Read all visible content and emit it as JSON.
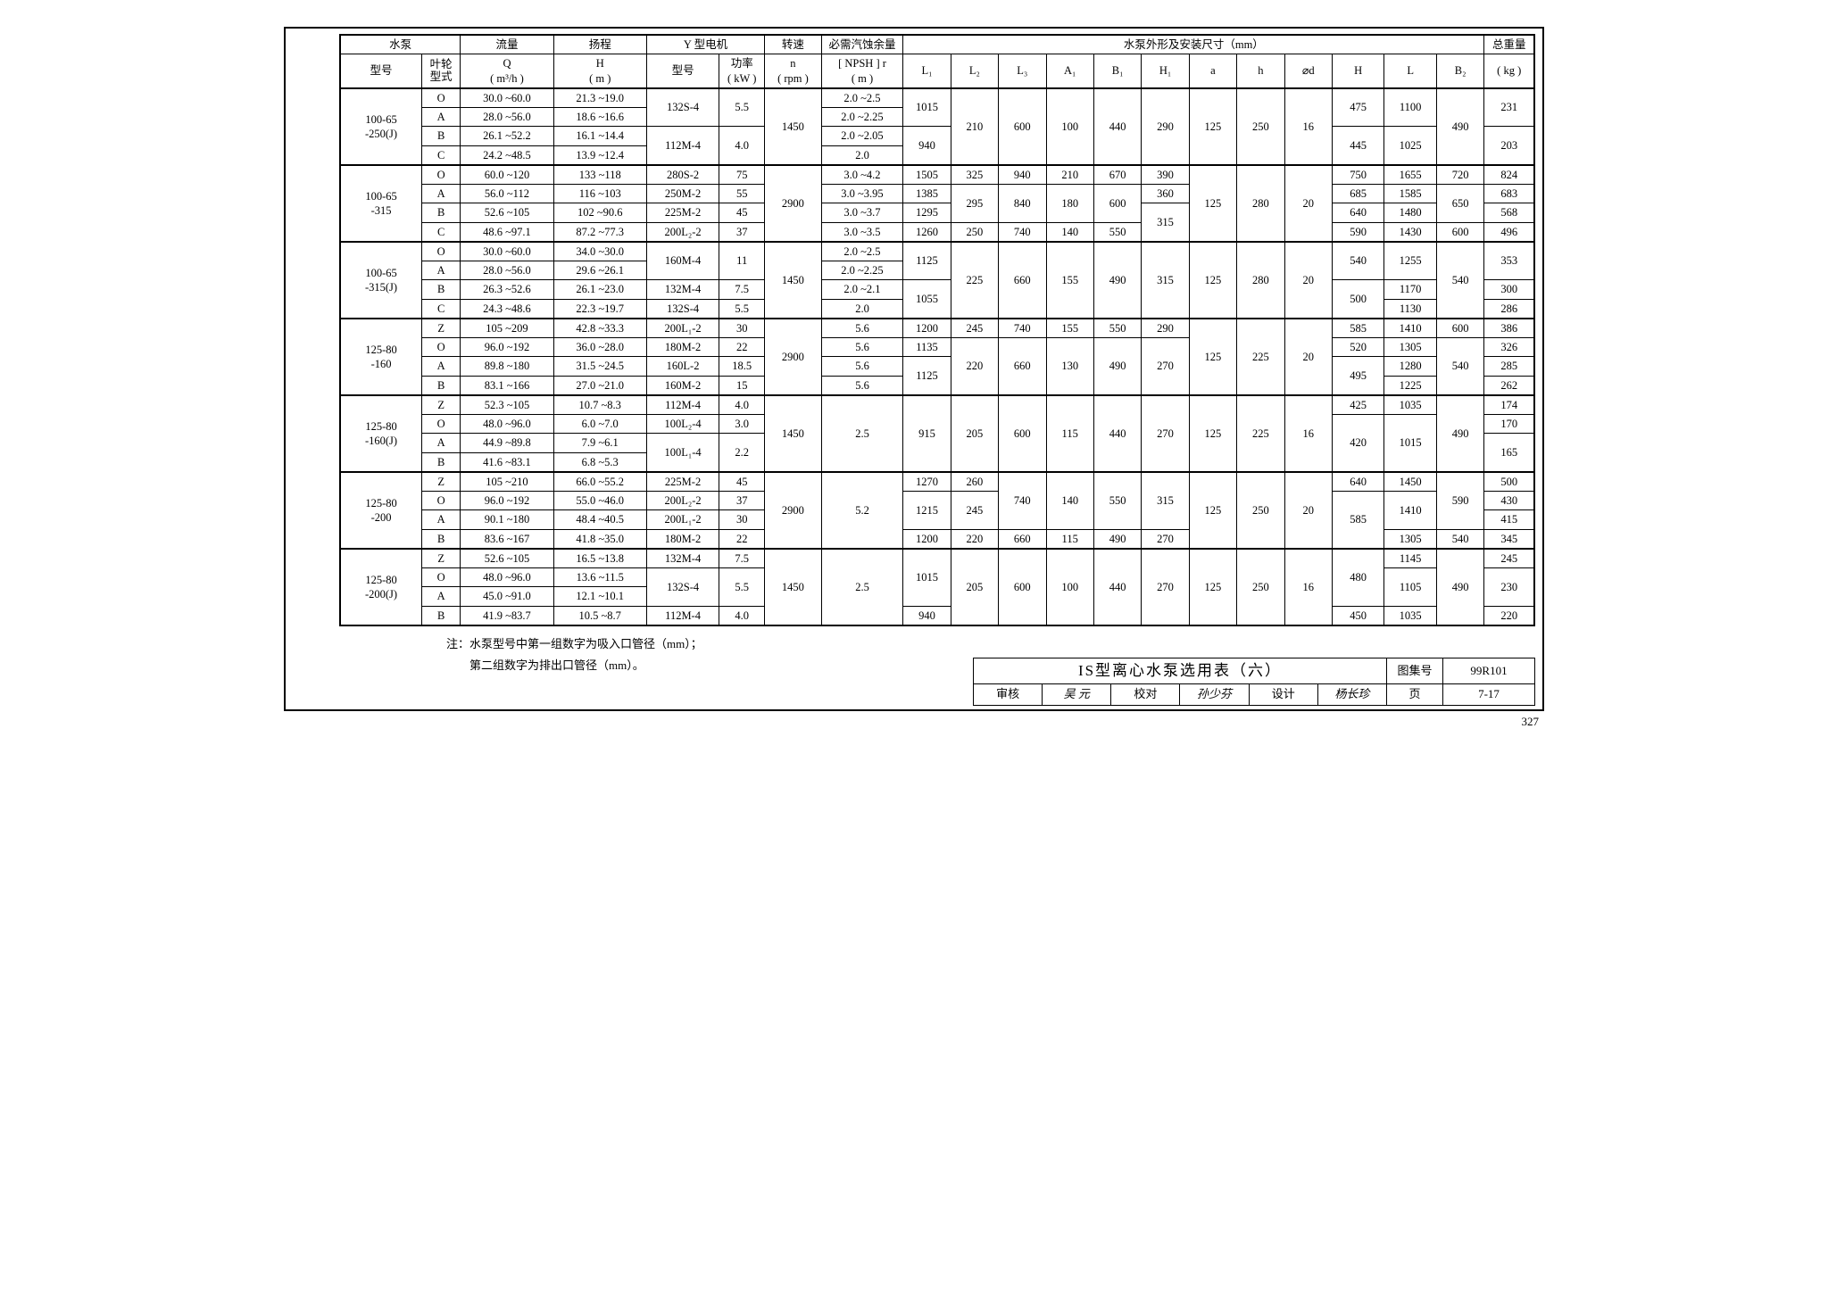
{
  "header": {
    "pump": "水泵",
    "flow": "流量",
    "head": "扬程",
    "motor": "Y 型电机",
    "speed": "转速",
    "npsh": "必需汽蚀余量",
    "dims": "水泵外形及安装尺寸（mm）",
    "weight": "总重量",
    "model": "型号",
    "impeller": "叶轮\n型式",
    "q": "Q\n( m³/h )",
    "h": "H\n( m )",
    "motor_model": "型号",
    "power": "功率\n( kW )",
    "n": "n\n( rpm )",
    "npsh_u": "[ NPSH ] r\n( m )",
    "kg": "( kg )",
    "d": [
      "L₁",
      "L₂",
      "L₃",
      "A₁",
      "B₁",
      "H₁",
      "a",
      "h",
      "⌀d",
      "H",
      "L",
      "B₂"
    ]
  },
  "notes": {
    "l1": "注：水泵型号中第一组数字为吸入口管径（mm）；",
    "l2": "第二组数字为排出口管径（mm）。"
  },
  "tb": {
    "title": "IS型离心水泵选用表（六）",
    "atlas_l": "图集号",
    "atlas_v": "99R101",
    "rev": "审核",
    "chk": "校对",
    "des": "设计",
    "page_l": "页",
    "page_v": "7-17",
    "sig1": "吴 元",
    "sig2": "孙少芬",
    "sig3": "杨长珍"
  },
  "pagenum": "327",
  "g": [
    {
      "model": "100-65\n-250(J)",
      "rpm": "1450",
      "dims_top": {
        "L1": "1015",
        "H": "475",
        "L": "1100",
        "kg": "231"
      },
      "dims_bot": {
        "L1": "940",
        "H": "445",
        "L": "1025",
        "kg": "203"
      },
      "dims_mid": {
        "L2": "210",
        "L3": "600",
        "A1": "100",
        "B1": "440",
        "H1": "290",
        "a": "125",
        "hh": "250",
        "od": "16",
        "B2": "490"
      },
      "r": [
        {
          "imp": "O",
          "q": "30.0 ~60.0",
          "h": "21.3 ~19.0",
          "mm": "132S-4",
          "kw": "5.5",
          "np": "2.0 ~2.5",
          "mspan": 2,
          "kspan": 2
        },
        {
          "imp": "A",
          "q": "28.0 ~56.0",
          "h": "18.6 ~16.6",
          "np": "2.0 ~2.25"
        },
        {
          "imp": "B",
          "q": "26.1 ~52.2",
          "h": "16.1 ~14.4",
          "mm": "112M-4",
          "kw": "4.0",
          "np": "2.0 ~2.05",
          "mspan": 2,
          "kspan": 2
        },
        {
          "imp": "C",
          "q": "24.2 ~48.5",
          "h": "13.9 ~12.4",
          "np": "2.0"
        }
      ]
    },
    {
      "model": "100-65\n-315",
      "rpm": "2900",
      "r": [
        {
          "imp": "O",
          "q": "60.0 ~120",
          "h": "133 ~118",
          "mm": "280S-2",
          "kw": "75",
          "np": "3.0 ~4.2",
          "d": {
            "L1": "1505",
            "L2": "325",
            "L3": "940",
            "A1": "210",
            "B1": "670",
            "H1": "390",
            "H": "750",
            "L": "1655",
            "B2": "720",
            "kg": "824"
          },
          "share": {
            "a": "125",
            "hh": "280",
            "od": "20"
          }
        },
        {
          "imp": "A",
          "q": "56.0 ~112",
          "h": "116 ~103",
          "mm": "250M-2",
          "kw": "55",
          "np": "3.0 ~3.95",
          "d": {
            "L1": "1385",
            "H1": "360",
            "H": "685",
            "L": "1585",
            "kg": "683"
          },
          "mid": {
            "L2": "295",
            "L3": "840",
            "A1": "180",
            "B1": "600",
            "B2": "650"
          }
        },
        {
          "imp": "B",
          "q": "52.6 ~105",
          "h": "102 ~90.6",
          "mm": "225M-2",
          "kw": "45",
          "np": "3.0 ~3.7",
          "d": {
            "L1": "1295",
            "H": "640",
            "L": "1480",
            "kg": "568"
          },
          "H1_mid": "315"
        },
        {
          "imp": "C",
          "q": "48.6 ~97.1",
          "h": "87.2 ~77.3",
          "mm": "200L₂-2",
          "kw": "37",
          "np": "3.0 ~3.5",
          "d": {
            "L1": "1260",
            "L2": "250",
            "L3": "740",
            "A1": "140",
            "B1": "550",
            "H": "590",
            "L": "1430",
            "B2": "600",
            "kg": "496"
          }
        }
      ]
    },
    {
      "model": "100-65\n-315(J)",
      "rpm": "1450",
      "dims_top": {
        "L1": "1125",
        "H": "540",
        "L": "1255",
        "kg": "353"
      },
      "dims_mid": {
        "L2": "225",
        "L3": "660",
        "A1": "155",
        "B1": "490",
        "H1": "315",
        "a": "125",
        "hh": "280",
        "od": "20",
        "B2": "540"
      },
      "r": [
        {
          "imp": "O",
          "q": "30.0 ~60.0",
          "h": "34.0 ~30.0",
          "mm": "160M-4",
          "kw": "11",
          "np": "2.0 ~2.5",
          "mspan": 2,
          "kspan": 2
        },
        {
          "imp": "A",
          "q": "28.0 ~56.0",
          "h": "29.6 ~26.1",
          "np": "2.0 ~2.25"
        },
        {
          "imp": "B",
          "q": "26.3 ~52.6",
          "h": "26.1 ~23.0",
          "mm": "132M-4",
          "kw": "7.5",
          "np": "2.0 ~2.1",
          "bot": {
            "L1": "1055",
            "H": "500",
            "kg": "300",
            "L": "1170"
          }
        },
        {
          "imp": "C",
          "q": "24.3 ~48.6",
          "h": "22.3 ~19.7",
          "mm": "132S-4",
          "kw": "5.5",
          "np": "2.0",
          "d": {
            "L": "1130",
            "kg": "286"
          }
        }
      ]
    },
    {
      "model": "125-80\n-160",
      "rpm": "2900",
      "r": [
        {
          "imp": "Z",
          "q": "105 ~209",
          "h": "42.8 ~33.3",
          "mm": "200L₁-2",
          "kw": "30",
          "np": "5.6",
          "d": {
            "L1": "1200",
            "L2": "245",
            "L3": "740",
            "A1": "155",
            "B1": "550",
            "H1": "290",
            "H": "585",
            "L": "1410",
            "B2": "600",
            "kg": "386"
          },
          "share": {
            "a": "125",
            "hh": "225",
            "od": "20"
          }
        },
        {
          "imp": "O",
          "q": "96.0 ~192",
          "h": "36.0 ~28.0",
          "mm": "180M-2",
          "kw": "22",
          "np": "5.6",
          "d": {
            "L1": "1135",
            "H": "520",
            "L": "1305",
            "kg": "326"
          },
          "mid": {
            "L2": "220",
            "L3": "660",
            "A1": "130",
            "B1": "490",
            "H1": "270",
            "B2": "540"
          }
        },
        {
          "imp": "A",
          "q": "89.8 ~180",
          "h": "31.5 ~24.5",
          "mm": "160L-2",
          "kw": "18.5",
          "np": "5.6",
          "d": {
            "L": "1280",
            "kg": "285"
          },
          "L1_mid": "1125",
          "H_mid": "495"
        },
        {
          "imp": "B",
          "q": "83.1 ~166",
          "h": "27.0 ~21.0",
          "mm": "160M-2",
          "kw": "15",
          "np": "5.6",
          "d": {
            "L": "1225",
            "kg": "262"
          }
        }
      ]
    },
    {
      "model": "125-80\n-160(J)",
      "rpm": "1450",
      "npsh": "2.5",
      "dims_all": {
        "L1": "915",
        "L2": "205",
        "L3": "600",
        "A1": "115",
        "B1": "440",
        "H1": "270",
        "a": "125",
        "hh": "225",
        "od": "16",
        "B2": "490"
      },
      "r": [
        {
          "imp": "Z",
          "q": "52.3 ~105",
          "h": "10.7 ~8.3",
          "mm": "112M-4",
          "kw": "4.0",
          "d": {
            "H": "425",
            "L": "1035",
            "kg": "174"
          }
        },
        {
          "imp": "O",
          "q": "48.0 ~96.0",
          "h": "6.0 ~7.0",
          "mm": "100L₂-4",
          "kw": "3.0",
          "d": {
            "kg": "170"
          },
          "HL_mid": {
            "H": "420",
            "L": "1015"
          }
        },
        {
          "imp": "A",
          "q": "44.9 ~89.8",
          "h": "7.9 ~6.1",
          "mm": "100L₁-4",
          "kw": "2.2",
          "mspan": 2,
          "kspan": 2,
          "kg_mid": "165"
        },
        {
          "imp": "B",
          "q": "41.6 ~83.1",
          "h": "6.8 ~5.3"
        }
      ]
    },
    {
      "model": "125-80\n-200",
      "rpm": "2900",
      "npsh": "5.2",
      "r": [
        {
          "imp": "Z",
          "q": "105 ~210",
          "h": "66.0 ~55.2",
          "mm": "225M-2",
          "kw": "45",
          "d": {
            "L1": "1270",
            "L2": "260",
            "H": "640",
            "L": "1450",
            "kg": "500"
          },
          "mid": {
            "L3": "740",
            "A1": "140",
            "B1": "550",
            "H1": "315",
            "B2": "590"
          },
          "share": {
            "a": "125",
            "hh": "250",
            "od": "20"
          }
        },
        {
          "imp": "O",
          "q": "96.0 ~192",
          "h": "55.0 ~46.0",
          "mm": "200L₂-2",
          "kw": "37",
          "d": {
            "kg": "430"
          },
          "L1_mid": "1215",
          "L2_mid": "245",
          "HL_mid": {
            "H": "585",
            "L": "1410"
          }
        },
        {
          "imp": "A",
          "q": "90.1 ~180",
          "h": "48.4 ~40.5",
          "mm": "200L₁-2",
          "kw": "30",
          "d": {
            "kg": "415"
          }
        },
        {
          "imp": "B",
          "q": "83.6 ~167",
          "h": "41.8 ~35.0",
          "mm": "180M-2",
          "kw": "22",
          "d": {
            "L1": "1200",
            "L2": "220",
            "L3": "660",
            "A1": "115",
            "B1": "490",
            "H1": "270",
            "L": "1305",
            "B2": "540",
            "kg": "345"
          }
        }
      ]
    },
    {
      "model": "125-80\n-200(J)",
      "rpm": "1450",
      "npsh": "2.5",
      "dims_mid": {
        "L2": "205",
        "L3": "600",
        "A1": "100",
        "B1": "440",
        "H1": "270",
        "a": "125",
        "hh": "250",
        "od": "16",
        "B2": "490"
      },
      "r": [
        {
          "imp": "Z",
          "q": "52.6 ~105",
          "h": "16.5 ~13.8",
          "mm": "132M-4",
          "kw": "7.5",
          "d": {
            "L": "1145",
            "kg": "245"
          },
          "L1_3": "1015",
          "H_3": "480"
        },
        {
          "imp": "O",
          "q": "48.0 ~96.0",
          "h": "13.6 ~11.5",
          "mm": "132S-4",
          "kw": "5.5",
          "mspan": 2,
          "kspan": 2,
          "d": {
            "L": "1105"
          },
          "kg_mid": "230"
        },
        {
          "imp": "A",
          "q": "45.0 ~91.0",
          "h": "12.1 ~10.1"
        },
        {
          "imp": "B",
          "q": "41.9 ~83.7",
          "h": "10.5 ~8.7",
          "mm": "112M-4",
          "kw": "4.0",
          "d": {
            "L1": "940",
            "H": "450",
            "L": "1035",
            "kg": "220"
          }
        }
      ]
    }
  ]
}
